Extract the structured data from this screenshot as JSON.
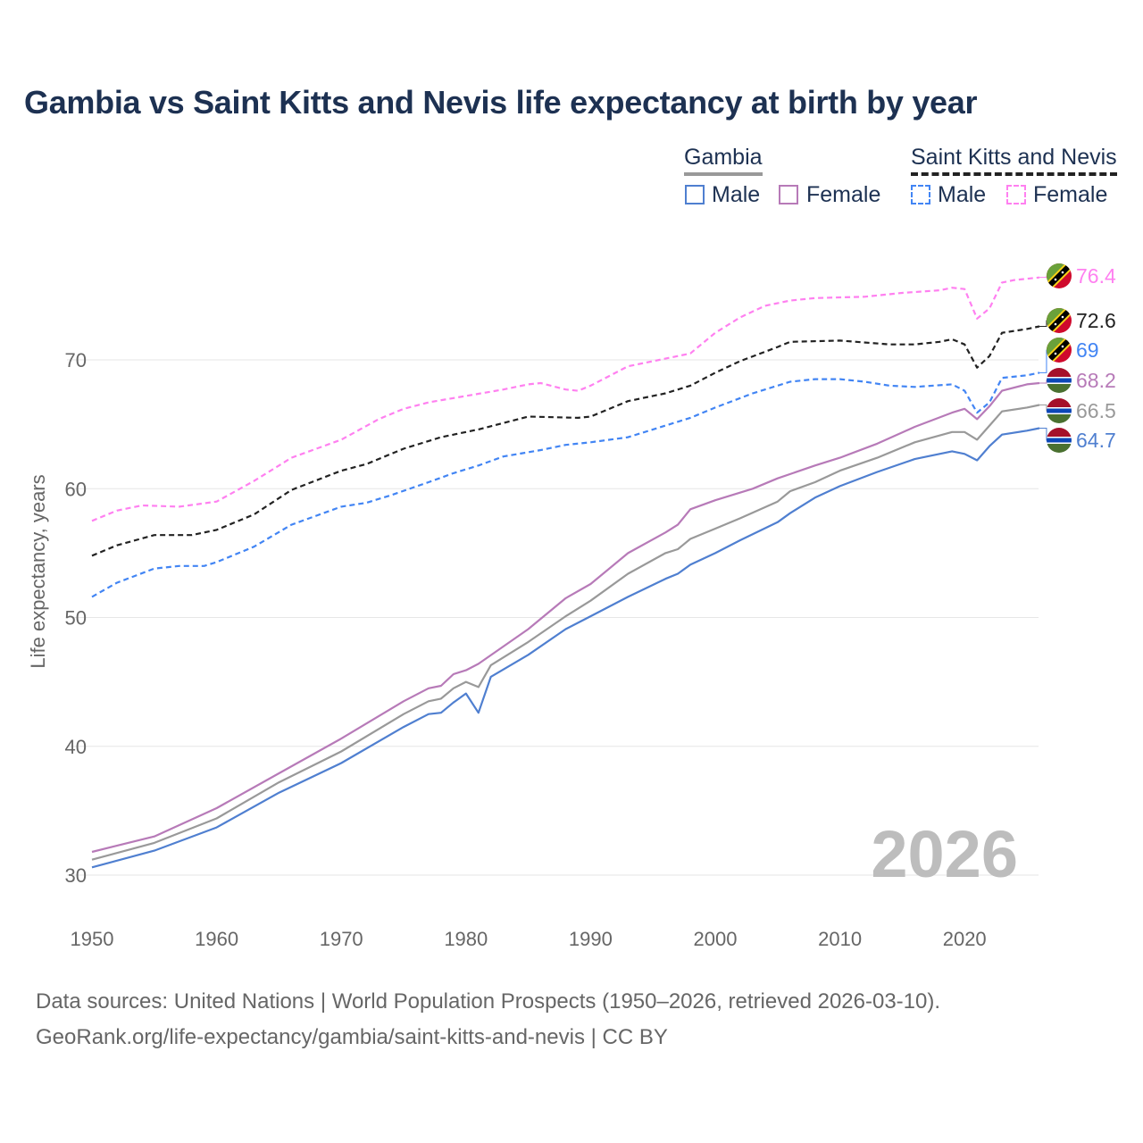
{
  "chart_data": {
    "type": "line",
    "title": "Gambia vs Saint Kitts and Nevis life expectancy at birth by year",
    "xlabel": "",
    "ylabel": "Life expectancy, years",
    "xlim": [
      1950,
      2026
    ],
    "ylim": [
      30,
      77
    ],
    "x_ticks": [
      "1950",
      "1960",
      "1970",
      "1980",
      "1990",
      "2000",
      "2010",
      "2020"
    ],
    "y_ticks": [
      "30",
      "40",
      "50",
      "60",
      "70"
    ],
    "grid": true,
    "year_watermark": "2026",
    "legend": {
      "placement": "top-right",
      "groups": [
        {
          "name": "Gambia",
          "items": [
            "Male",
            "Female"
          ]
        },
        {
          "name": "Saint Kitts and Nevis",
          "items": [
            "Male",
            "Female"
          ]
        }
      ]
    },
    "series": [
      {
        "name": "Saint Kitts and Nevis Female",
        "color": "#ff80f0",
        "dash": true,
        "flag": "saint-kitts-and-nevis",
        "end_label": "76.4",
        "x": [
          1950,
          1952,
          1954,
          1957,
          1960,
          1963,
          1966,
          1970,
          1973,
          1975,
          1977,
          1980,
          1983,
          1985,
          1986,
          1988,
          1989,
          1990,
          1993,
          1996,
          1998,
          2000,
          2002,
          2004,
          2006,
          2008,
          2012,
          2015,
          2018,
          2019,
          2020,
          2021,
          2022,
          2023,
          2024,
          2026
        ],
        "y": [
          57.5,
          58.3,
          58.7,
          58.6,
          59.0,
          60.6,
          62.4,
          63.8,
          65.4,
          66.2,
          66.7,
          67.2,
          67.7,
          68.1,
          68.2,
          67.7,
          67.6,
          68.0,
          69.5,
          70.1,
          70.5,
          72.1,
          73.3,
          74.2,
          74.6,
          74.8,
          74.9,
          75.2,
          75.4,
          75.6,
          75.5,
          73.2,
          74.0,
          76.0,
          76.2,
          76.4
        ]
      },
      {
        "name": "Saint Kitts and Nevis",
        "color": "#222222",
        "dash": true,
        "flag": "saint-kitts-and-nevis",
        "end_label": "72.6",
        "x": [
          1950,
          1952,
          1955,
          1958,
          1960,
          1963,
          1966,
          1970,
          1972,
          1975,
          1978,
          1981,
          1985,
          1989,
          1990,
          1993,
          1996,
          1998,
          2000,
          2002,
          2005,
          2006,
          2010,
          2014,
          2016,
          2018,
          2019,
          2020,
          2021,
          2022,
          2023,
          2025,
          2026
        ],
        "y": [
          54.8,
          55.6,
          56.4,
          56.4,
          56.8,
          58.0,
          59.9,
          61.4,
          61.9,
          63.1,
          64.0,
          64.6,
          65.6,
          65.5,
          65.6,
          66.8,
          67.4,
          68.0,
          69.0,
          69.9,
          71.0,
          71.4,
          71.5,
          71.2,
          71.2,
          71.4,
          71.6,
          71.2,
          69.4,
          70.3,
          72.1,
          72.4,
          72.6
        ]
      },
      {
        "name": "Saint Kitts and Nevis Male",
        "color": "#4285f4",
        "dash": true,
        "flag": "saint-kitts-and-nevis",
        "end_label": "69",
        "x": [
          1950,
          1952,
          1955,
          1957,
          1959,
          1960,
          1963,
          1966,
          1970,
          1972,
          1974,
          1977,
          1979,
          1981,
          1983,
          1986,
          1988,
          1990,
          1993,
          1996,
          1998,
          2000,
          2003,
          2006,
          2008,
          2010,
          2012,
          2014,
          2016,
          2019,
          2020,
          2021,
          2022,
          2023,
          2025,
          2026
        ],
        "y": [
          51.6,
          52.7,
          53.8,
          54.0,
          54.0,
          54.3,
          55.5,
          57.2,
          58.6,
          58.9,
          59.5,
          60.5,
          61.2,
          61.8,
          62.5,
          63.0,
          63.4,
          63.6,
          64.0,
          64.9,
          65.5,
          66.3,
          67.4,
          68.3,
          68.5,
          68.5,
          68.3,
          68.0,
          67.9,
          68.1,
          67.6,
          65.9,
          66.7,
          68.6,
          68.8,
          69.0
        ]
      },
      {
        "name": "Gambia Female",
        "color": "#b77ab8",
        "dash": false,
        "flag": "gambia",
        "end_label": "68.2",
        "x": [
          1950,
          1955,
          1960,
          1965,
          1970,
          1975,
          1977,
          1978,
          1979,
          1980,
          1981,
          1985,
          1988,
          1990,
          1993,
          1996,
          1997,
          1998,
          2000,
          2003,
          2005,
          2008,
          2010,
          2013,
          2016,
          2019,
          2020,
          2021,
          2022,
          2023,
          2025,
          2026
        ],
        "y": [
          31.8,
          33.0,
          35.2,
          37.9,
          40.6,
          43.5,
          44.5,
          44.7,
          45.6,
          45.9,
          46.4,
          49.1,
          51.5,
          52.6,
          55.0,
          56.6,
          57.2,
          58.4,
          59.1,
          60.0,
          60.8,
          61.8,
          62.4,
          63.5,
          64.8,
          65.9,
          66.2,
          65.4,
          66.4,
          67.6,
          68.1,
          68.2
        ]
      },
      {
        "name": "Gambia",
        "color": "#999999",
        "dash": false,
        "flag": "gambia",
        "end_label": "66.5",
        "x": [
          1950,
          1955,
          1960,
          1965,
          1970,
          1975,
          1977,
          1978,
          1979,
          1980,
          1981,
          1982,
          1985,
          1988,
          1990,
          1993,
          1996,
          1997,
          1998,
          2000,
          2002,
          2005,
          2006,
          2008,
          2010,
          2013,
          2016,
          2019,
          2020,
          2021,
          2022,
          2023,
          2025,
          2026
        ],
        "y": [
          31.2,
          32.5,
          34.4,
          37.2,
          39.6,
          42.5,
          43.5,
          43.7,
          44.5,
          45.0,
          44.6,
          46.3,
          48.1,
          50.1,
          51.3,
          53.4,
          55.0,
          55.3,
          56.1,
          56.9,
          57.7,
          59.0,
          59.8,
          60.5,
          61.4,
          62.4,
          63.6,
          64.4,
          64.4,
          63.8,
          64.9,
          66.0,
          66.3,
          66.5
        ]
      },
      {
        "name": "Gambia Male",
        "color": "#4f7fd0",
        "dash": false,
        "flag": "gambia",
        "end_label": "64.7",
        "x": [
          1950,
          1955,
          1960,
          1965,
          1970,
          1975,
          1977,
          1978,
          1979,
          1980,
          1981,
          1982,
          1985,
          1988,
          1990,
          1993,
          1996,
          1997,
          1998,
          2000,
          2002,
          2005,
          2006,
          2008,
          2010,
          2013,
          2016,
          2019,
          2020,
          2021,
          2022,
          2023,
          2025,
          2026
        ],
        "y": [
          30.6,
          31.9,
          33.7,
          36.4,
          38.7,
          41.5,
          42.5,
          42.6,
          43.4,
          44.1,
          42.6,
          45.4,
          47.1,
          49.1,
          50.1,
          51.6,
          53.0,
          53.4,
          54.1,
          55.0,
          56.0,
          57.4,
          58.1,
          59.3,
          60.2,
          61.3,
          62.3,
          62.9,
          62.7,
          62.2,
          63.3,
          64.2,
          64.5,
          64.7
        ]
      }
    ]
  },
  "legend_colors": {
    "gambia_group": "#999999",
    "skn_group": "#222222"
  },
  "footer": {
    "line1": "Data sources: United Nations | World Population Prospects (1950–2026, retrieved 2026-03-10).",
    "line2": "GeoRank.org/life-expectancy/gambia/saint-kitts-and-nevis | CC BY"
  }
}
